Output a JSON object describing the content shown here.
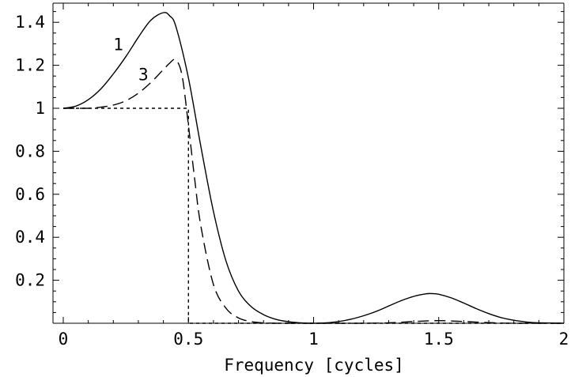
{
  "chart_data": {
    "type": "line",
    "title": "",
    "xlabel": "Frequency [cycles]",
    "ylabel": "",
    "xlim": [
      -0.04,
      2.0
    ],
    "ylim": [
      0.0,
      1.5
    ],
    "x_ticks": [
      {
        "value": 0,
        "label": "0"
      },
      {
        "value": 0.5,
        "label": "0.5"
      },
      {
        "value": 1,
        "label": "1"
      },
      {
        "value": 1.5,
        "label": "1.5"
      },
      {
        "value": 2,
        "label": "2"
      }
    ],
    "y_ticks": [
      {
        "value": 0.2,
        "label": "0.2"
      },
      {
        "value": 0.4,
        "label": "0.4"
      },
      {
        "value": 0.6,
        "label": "0.6"
      },
      {
        "value": 0.8,
        "label": "0.8"
      },
      {
        "value": 1.0,
        "label": "1"
      },
      {
        "value": 1.2,
        "label": "1.2"
      },
      {
        "value": 1.4,
        "label": "1.4"
      }
    ],
    "grid": false,
    "series": [
      {
        "name": "1",
        "style": "solid",
        "color": "#000000",
        "x": [
          0,
          0.05,
          0.1,
          0.15,
          0.2,
          0.25,
          0.3,
          0.35,
          0.4,
          0.425,
          0.45,
          0.5,
          0.55,
          0.6,
          0.65,
          0.7,
          0.75,
          0.8,
          0.85,
          0.9,
          0.95,
          1.0,
          1.05,
          1.1,
          1.15,
          1.2,
          1.25,
          1.3,
          1.35,
          1.4,
          1.45,
          1.475,
          1.5,
          1.55,
          1.6,
          1.65,
          1.7,
          1.75,
          1.8,
          1.85,
          1.9,
          2.0
        ],
        "y": [
          1.0,
          1.01,
          1.04,
          1.09,
          1.16,
          1.24,
          1.33,
          1.41,
          1.445,
          1.43,
          1.38,
          1.14,
          0.82,
          0.52,
          0.29,
          0.15,
          0.078,
          0.04,
          0.018,
          0.007,
          0.002,
          0.0,
          0.002,
          0.008,
          0.019,
          0.035,
          0.055,
          0.08,
          0.105,
          0.125,
          0.137,
          0.138,
          0.135,
          0.118,
          0.094,
          0.068,
          0.045,
          0.026,
          0.014,
          0.006,
          0.002,
          0.0
        ]
      },
      {
        "name": "3",
        "style": "dashed",
        "color": "#000000",
        "x": [
          0,
          0.05,
          0.1,
          0.15,
          0.2,
          0.25,
          0.3,
          0.35,
          0.4,
          0.425,
          0.45,
          0.475,
          0.5,
          0.525,
          0.55,
          0.6,
          0.65,
          0.7,
          0.75,
          0.8,
          0.85,
          0.9,
          1.0,
          1.1,
          1.2,
          1.3,
          1.4,
          1.5,
          1.6,
          1.7,
          1.8,
          2.0
        ],
        "y": [
          1.0,
          1.0,
          1.0,
          1.005,
          1.015,
          1.035,
          1.07,
          1.12,
          1.18,
          1.21,
          1.225,
          1.15,
          0.92,
          0.67,
          0.45,
          0.18,
          0.07,
          0.025,
          0.008,
          0.002,
          0.0,
          0.0,
          0.0,
          0.0,
          0.0,
          0.002,
          0.008,
          0.012,
          0.008,
          0.003,
          0.0,
          0.0
        ]
      },
      {
        "name": "",
        "style": "dotted",
        "color": "#000000",
        "x": [
          0,
          0.5,
          0.5,
          2.0
        ],
        "y": [
          1.0,
          1.0,
          0.0,
          0.0
        ]
      }
    ],
    "annotations": [
      {
        "text": "1",
        "x": 0.22,
        "y": 1.27
      },
      {
        "text": "3",
        "x": 0.32,
        "y": 1.13
      }
    ]
  }
}
